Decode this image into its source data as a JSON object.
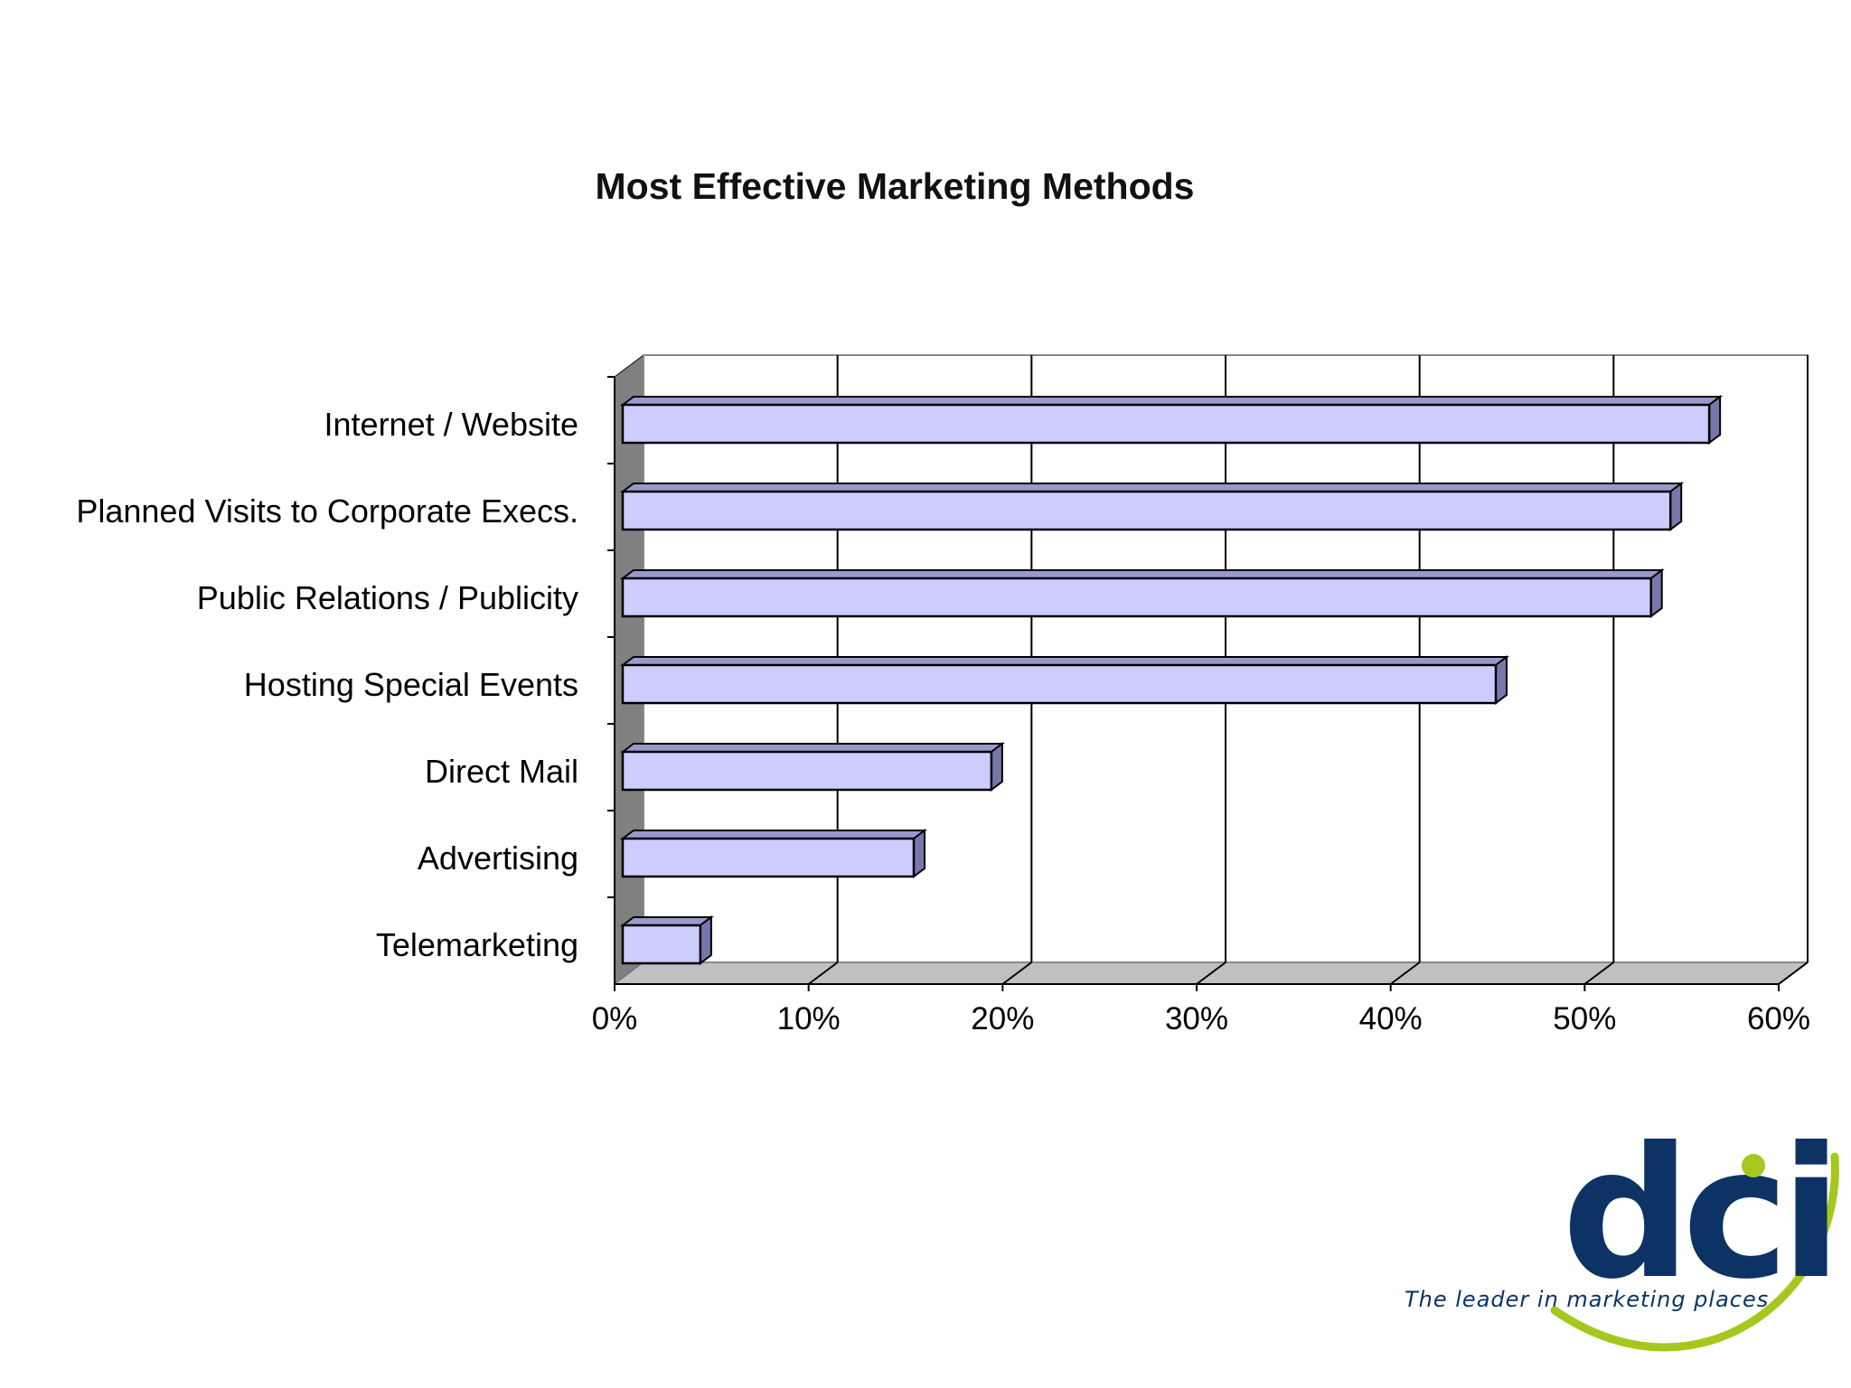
{
  "chart_data": {
    "type": "bar",
    "orientation": "horizontal",
    "style": "3d",
    "title": "Most Effective Marketing Methods",
    "categories": [
      "Internet / Website",
      "Planned Visits to Corporate Execs.",
      "Public Relations / Publicity",
      "Hosting Special Events",
      "Direct Mail",
      "Advertising",
      "Telemarketing"
    ],
    "values": [
      56,
      54,
      53,
      45,
      19,
      15,
      4
    ],
    "xlim": [
      0,
      60
    ],
    "xticks": [
      "0%",
      "10%",
      "20%",
      "30%",
      "40%",
      "50%",
      "60%"
    ],
    "grid": true,
    "legend": "none",
    "colors": {
      "bar_face": "#ccccff",
      "bar_top": "#9999cc",
      "bar_side": "#7777aa",
      "wall_left": "#808080",
      "floor": "#c0c0c0"
    }
  },
  "logo": {
    "text": "dci",
    "tagline": "The leader in marketing places",
    "colors": {
      "text": "#0d3364",
      "accent": "#a6c81e"
    }
  }
}
